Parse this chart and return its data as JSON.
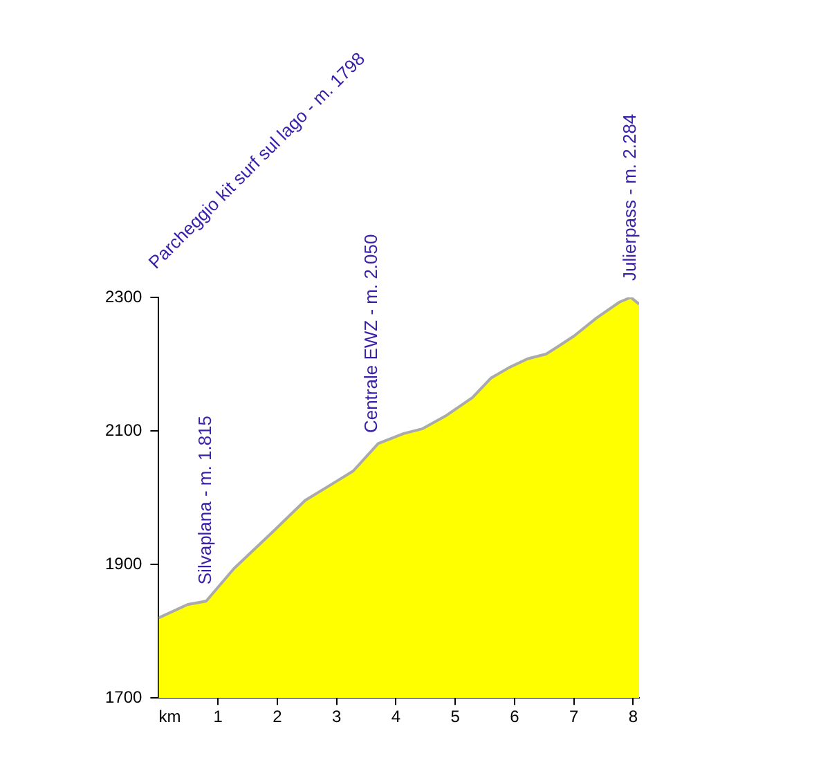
{
  "chart_data": {
    "type": "area",
    "xlabel": "km",
    "x": [
      0,
      0.49,
      0.8,
      1.27,
      1.96,
      2.47,
      2.97,
      3.28,
      3.7,
      4.13,
      4.44,
      4.83,
      5.29,
      5.6,
      5.91,
      6.22,
      6.53,
      6.76,
      7.0,
      7.38,
      7.77,
      7.96,
      8.1
    ],
    "series": [
      {
        "color": "#ffff00",
        "values": [
          1820,
          1840,
          1845,
          1894,
          1952,
          1996,
          2023,
          2040,
          2081,
          2096,
          2103,
          2122,
          2150,
          2179,
          2195,
          2208,
          2215,
          2228,
          2242,
          2269,
          2293,
          2300,
          2290
        ]
      }
    ],
    "xlim": [
      0,
      8.1
    ],
    "xticks": [
      1,
      2,
      3,
      4,
      5,
      6,
      7,
      8
    ],
    "ylim": [
      1700,
      2300
    ],
    "yticks": [
      1700,
      1900,
      2100,
      2300
    ],
    "grid": false,
    "legend": false,
    "annotations": [
      "Parcheggio kit surf sul lago - m. 1798",
      {
        "text": "Silvaplana - m. 1.815",
        "x": 0.8,
        "y": 1845
      },
      {
        "text": "Centrale EWZ - m. 2.050",
        "x": 3.6,
        "y": 2072
      },
      {
        "text": "Julierpass - m. 2.284",
        "x": 7.96,
        "y": 2300
      }
    ]
  }
}
